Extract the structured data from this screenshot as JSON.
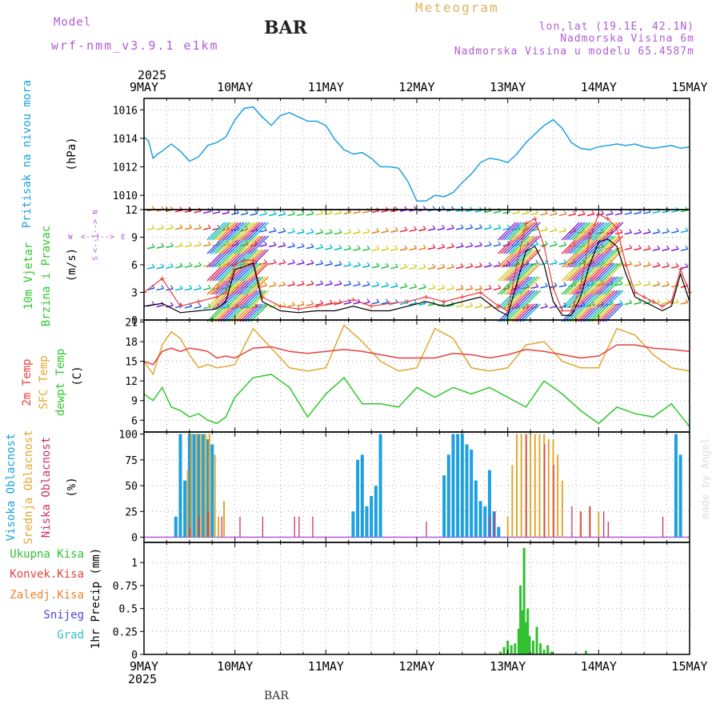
{
  "header": {
    "model_label": "Model",
    "model_name": "wrf-nmm_v3.9.1 e1km",
    "station": "BAR",
    "product": "Meteogram",
    "lonlat": "lon,lat (19.1E, 42.1N)",
    "elevation": "Nadmorska Visina 6m",
    "model_elevation": "Nadmorska Visina u modelu 65.4587m",
    "footer_station": "BAR",
    "credit": "made by Angel"
  },
  "colors": {
    "header_purple": "#b05bd6",
    "product_gold": "#e3b15c",
    "pressure": "#1ea0e0",
    "temp2m": "#e84040",
    "sfc_temp": "#e0a830",
    "dewpt": "#2fc82f",
    "high_cloud": "#1ea0e0",
    "mid_cloud": "#e0a830",
    "low_cloud": "#d0306a",
    "total_precip": "#30c030",
    "conv_precip": "#e84040",
    "frozen_precip": "#f08030",
    "snow": "#4848e0",
    "hail": "#30c0c0",
    "gust": "#e84040",
    "wind_speed": "#000000"
  },
  "chart_data": [
    {
      "type": "line",
      "panel": "pressure",
      "ylabel_colored": "Pritisak na nivou mora",
      "unit": "(hPa)",
      "ylim": [
        1009,
        1016.8
      ],
      "yticks": [
        "1010",
        "1012",
        "1014",
        "1016"
      ],
      "x_ticks": [
        "9MAY",
        "10MAY",
        "11MAY",
        "12MAY",
        "13MAY",
        "14MAY",
        "15MAY"
      ],
      "top_year": "2025",
      "series": [
        {
          "name": "Pritisak na nivou mora",
          "x_days": [
            0,
            0.05,
            0.1,
            0.15,
            0.2,
            0.3,
            0.4,
            0.5,
            0.6,
            0.7,
            0.8,
            0.9,
            1.0,
            1.1,
            1.2,
            1.3,
            1.4,
            1.5,
            1.6,
            1.7,
            1.8,
            1.9,
            2.0,
            2.1,
            2.2,
            2.3,
            2.4,
            2.5,
            2.6,
            2.7,
            2.8,
            2.9,
            3.0,
            3.1,
            3.2,
            3.3,
            3.4,
            3.5,
            3.6,
            3.7,
            3.8,
            3.9,
            4.0,
            4.1,
            4.2,
            4.3,
            4.4,
            4.5,
            4.6,
            4.7,
            4.8,
            4.9,
            5.0,
            5.1,
            5.2,
            5.3,
            5.4,
            5.5,
            5.6,
            5.7,
            5.8,
            5.9,
            6.0
          ],
          "values": [
            1014.1,
            1013.8,
            1012.6,
            1012.9,
            1013.1,
            1013.6,
            1013.1,
            1012.4,
            1012.7,
            1013.5,
            1013.7,
            1014.1,
            1015.3,
            1016.1,
            1016.2,
            1015.5,
            1014.9,
            1015.6,
            1015.8,
            1015.5,
            1015.2,
            1015.2,
            1014.9,
            1013.9,
            1013.2,
            1012.9,
            1013.0,
            1012.6,
            1012.0,
            1012.0,
            1011.9,
            1011.0,
            1009.6,
            1009.6,
            1010.0,
            1009.9,
            1010.2,
            1010.9,
            1011.5,
            1012.3,
            1012.6,
            1012.5,
            1012.3,
            1012.9,
            1013.7,
            1014.3,
            1014.9,
            1015.3,
            1014.7,
            1013.7,
            1013.3,
            1013.2,
            1013.4,
            1013.5,
            1013.6,
            1013.5,
            1013.6,
            1013.4,
            1013.3,
            1013.4,
            1013.5,
            1013.3,
            1013.4
          ]
        }
      ]
    },
    {
      "type": "line",
      "panel": "wind",
      "ylabel_colored_1": "10m Vjetar",
      "ylabel_colored_2": "Brzina i Pravac",
      "unit": "(m/s)",
      "ylim": [
        0,
        12
      ],
      "yticks": [
        "0",
        "3",
        "6",
        "9",
        "12"
      ],
      "compass": {
        "n": "N",
        "s": "S",
        "e": "E",
        "w": "W",
        "arrows": "<--|-->"
      },
      "series": [
        {
          "name": "wind_speed",
          "x_days": [
            0,
            0.2,
            0.4,
            0.6,
            0.8,
            0.9,
            1.0,
            1.1,
            1.2,
            1.3,
            1.5,
            1.7,
            1.9,
            2.1,
            2.3,
            2.5,
            2.7,
            2.9,
            3.1,
            3.3,
            3.5,
            3.7,
            3.9,
            4.0,
            4.1,
            4.2,
            4.3,
            4.4,
            4.5,
            4.6,
            4.7,
            4.8,
            4.9,
            5.0,
            5.1,
            5.2,
            5.3,
            5.4,
            5.5,
            5.6,
            5.7,
            5.8,
            5.9,
            6.0
          ],
          "values": [
            1.5,
            1.8,
            0.8,
            1.0,
            1.2,
            2.0,
            5.5,
            5.8,
            6.2,
            2.0,
            1.0,
            0.8,
            1.0,
            1.0,
            1.5,
            1.0,
            1.0,
            1.5,
            2.0,
            1.5,
            2.0,
            2.5,
            1.0,
            0.5,
            4.0,
            7.5,
            8.0,
            6.0,
            2.0,
            0.5,
            0.5,
            2.5,
            6.0,
            8.5,
            8.8,
            8.0,
            5.0,
            2.5,
            2.0,
            1.5,
            1.0,
            1.5,
            5.0,
            2.0
          ]
        },
        {
          "name": "gust",
          "x_days": [
            0,
            0.2,
            0.4,
            0.6,
            0.8,
            0.9,
            1.0,
            1.1,
            1.2,
            1.3,
            1.5,
            1.7,
            1.9,
            2.1,
            2.3,
            2.5,
            2.7,
            2.9,
            3.1,
            3.3,
            3.5,
            3.7,
            3.9,
            4.0,
            4.1,
            4.2,
            4.3,
            4.4,
            4.5,
            4.6,
            4.7,
            4.8,
            4.9,
            5.0,
            5.1,
            5.2,
            5.3,
            5.4,
            5.5,
            5.6,
            5.7,
            5.8,
            5.9,
            6.0
          ],
          "values": [
            3.0,
            4.5,
            1.5,
            2.0,
            2.5,
            3.0,
            6.0,
            6.5,
            6.5,
            2.5,
            1.5,
            1.2,
            1.5,
            1.8,
            2.2,
            1.5,
            1.8,
            2.0,
            2.5,
            2.0,
            2.5,
            3.0,
            1.5,
            1.0,
            6.0,
            10.5,
            11.0,
            8.0,
            3.5,
            1.0,
            1.0,
            3.5,
            9.0,
            11.5,
            11.0,
            10.0,
            6.0,
            3.0,
            2.5,
            2.0,
            1.5,
            2.0,
            5.5,
            3.0
          ]
        }
      ]
    },
    {
      "type": "line",
      "panel": "temperature",
      "ylabel_colored_1": "2m Temp",
      "ylabel_colored_2": "SFC Temp",
      "ylabel_colored_3": "dewpt Temp",
      "unit": "(C)",
      "ylim": [
        4.2,
        21.3
      ],
      "yticks": [
        "6",
        "9",
        "12",
        "15",
        "18",
        "21"
      ],
      "series": [
        {
          "name": "2m Temp",
          "x_days": [
            0,
            0.1,
            0.2,
            0.3,
            0.4,
            0.5,
            0.6,
            0.7,
            0.8,
            0.9,
            1.0,
            1.2,
            1.4,
            1.6,
            1.8,
            2.0,
            2.2,
            2.4,
            2.6,
            2.8,
            3.0,
            3.2,
            3.4,
            3.6,
            3.8,
            4.0,
            4.2,
            4.4,
            4.6,
            4.8,
            5.0,
            5.2,
            5.4,
            5.6,
            5.8,
            6.0
          ],
          "values": [
            15.0,
            14.5,
            16.5,
            17.0,
            16.5,
            17.0,
            16.8,
            16.5,
            15.5,
            15.8,
            15.5,
            17.0,
            17.2,
            16.5,
            16.2,
            16.5,
            16.8,
            16.5,
            16.0,
            15.5,
            15.5,
            15.5,
            16.2,
            16.0,
            15.5,
            16.0,
            16.8,
            16.5,
            16.0,
            15.5,
            15.8,
            17.5,
            17.5,
            17.0,
            16.8,
            16.5
          ]
        },
        {
          "name": "SFC Temp",
          "x_days": [
            0,
            0.1,
            0.2,
            0.3,
            0.4,
            0.5,
            0.6,
            0.7,
            0.8,
            0.9,
            1.0,
            1.2,
            1.4,
            1.6,
            1.8,
            2.0,
            2.2,
            2.4,
            2.6,
            2.8,
            3.0,
            3.2,
            3.4,
            3.6,
            3.8,
            4.0,
            4.2,
            4.4,
            4.6,
            4.8,
            5.0,
            5.2,
            5.4,
            5.6,
            5.8,
            6.0
          ],
          "values": [
            15.0,
            13.0,
            17.5,
            19.5,
            18.5,
            16.0,
            14.0,
            14.5,
            14.0,
            14.2,
            14.5,
            20.0,
            17.0,
            14.0,
            13.5,
            14.0,
            20.5,
            18.0,
            15.0,
            13.5,
            14.0,
            20.0,
            18.5,
            14.0,
            13.5,
            14.0,
            17.5,
            18.0,
            15.0,
            14.0,
            14.0,
            20.0,
            19.0,
            16.0,
            14.0,
            13.5
          ]
        },
        {
          "name": "dewpt Temp",
          "x_days": [
            0,
            0.1,
            0.2,
            0.3,
            0.4,
            0.5,
            0.6,
            0.7,
            0.8,
            0.9,
            1.0,
            1.2,
            1.4,
            1.6,
            1.8,
            2.0,
            2.2,
            2.4,
            2.6,
            2.8,
            3.0,
            3.2,
            3.4,
            3.6,
            3.8,
            4.0,
            4.2,
            4.4,
            4.6,
            4.8,
            5.0,
            5.2,
            5.4,
            5.6,
            5.8,
            6.0
          ],
          "values": [
            10.0,
            9.0,
            11.0,
            8.0,
            7.5,
            6.5,
            7.0,
            6.0,
            5.5,
            6.5,
            9.5,
            12.5,
            13.0,
            11.0,
            6.5,
            10.0,
            12.5,
            8.5,
            8.5,
            8.0,
            11.0,
            9.5,
            11.0,
            10.0,
            11.0,
            9.5,
            8.0,
            12.0,
            10.0,
            7.5,
            5.5,
            8.0,
            7.0,
            6.5,
            8.5,
            5.0
          ]
        }
      ]
    },
    {
      "type": "bar",
      "panel": "cloud",
      "ylabel_colored_1": "Visoka Oblacnost",
      "ylabel_colored_2": "Srednja Oblacnost",
      "ylabel_colored_3": "Niska Oblacnost",
      "unit": "(%)",
      "ylim": [
        -5,
        102
      ],
      "yticks": [
        "0",
        "25",
        "50",
        "75",
        "100"
      ],
      "series": [
        {
          "name": "Visoka Oblacnost",
          "x_days": [
            0.35,
            0.4,
            0.45,
            0.5,
            0.55,
            0.6,
            0.65,
            0.7,
            0.75,
            2.3,
            2.35,
            2.4,
            2.45,
            2.5,
            2.55,
            2.6,
            3.3,
            3.35,
            3.4,
            3.45,
            3.5,
            3.55,
            3.6,
            3.65,
            3.7,
            3.75,
            3.8,
            3.85,
            3.9,
            5.85,
            5.9
          ],
          "values": [
            20,
            100,
            55,
            100,
            100,
            100,
            100,
            95,
            90,
            25,
            75,
            80,
            30,
            40,
            50,
            100,
            60,
            80,
            100,
            100,
            100,
            90,
            85,
            55,
            35,
            30,
            65,
            25,
            10,
            100,
            80
          ]
        },
        {
          "name": "Srednja Oblacnost",
          "x_days": [
            0.48,
            0.52,
            0.58,
            0.63,
            0.68,
            0.72,
            0.78,
            0.82,
            0.88,
            4.0,
            4.05,
            4.1,
            4.15,
            4.2,
            4.25,
            4.3,
            4.35,
            4.4,
            4.45,
            4.5,
            4.55,
            4.6,
            4.8,
            4.9,
            5.0
          ],
          "values": [
            65,
            100,
            100,
            100,
            100,
            100,
            80,
            20,
            35,
            20,
            70,
            100,
            100,
            100,
            100,
            100,
            100,
            100,
            95,
            95,
            80,
            55,
            25,
            30,
            25
          ]
        },
        {
          "name": "Niska Oblacnost",
          "x_days": [
            0.5,
            0.6,
            0.7,
            0.85,
            1.05,
            1.3,
            1.65,
            1.7,
            1.85,
            3.1,
            3.8,
            3.85,
            4.2,
            4.4,
            4.5,
            4.7,
            4.8,
            4.9,
            5.05,
            5.1,
            5.7
          ],
          "values": [
            10,
            20,
            25,
            20,
            20,
            20,
            20,
            20,
            20,
            15,
            20,
            25,
            100,
            90,
            70,
            30,
            25,
            30,
            25,
            15,
            20
          ]
        }
      ]
    },
    {
      "type": "bar",
      "panel": "precip",
      "legend": [
        "Ukupna Kisa",
        "Konvek.Kisa",
        "Zaledj.Kisa",
        "Snijeg",
        "Grad"
      ],
      "ylabel": "1hr Precip (mm)",
      "ylim": [
        0,
        1.22
      ],
      "yticks": [
        "0",
        "0.25",
        "0.5",
        "0.75",
        "1"
      ],
      "x_ticks": [
        "9MAY",
        "10MAY",
        "11MAY",
        "12MAY",
        "13MAY",
        "14MAY",
        "15MAY"
      ],
      "bottom_year": "2025",
      "series": [
        {
          "name": "Ukupna Kisa",
          "x_days": [
            1.7,
            3.92,
            3.96,
            4.0,
            4.04,
            4.08,
            4.12,
            4.14,
            4.16,
            4.18,
            4.2,
            4.22,
            4.24,
            4.28,
            4.32,
            4.36,
            4.4,
            4.44,
            4.48,
            4.86
          ],
          "values": [
            0.01,
            0.03,
            0.08,
            0.15,
            0.1,
            0.12,
            0.28,
            0.75,
            0.48,
            1.16,
            0.35,
            0.5,
            0.2,
            0.15,
            0.3,
            0.12,
            0.05,
            0.1,
            0.03,
            0.04
          ]
        }
      ]
    }
  ]
}
